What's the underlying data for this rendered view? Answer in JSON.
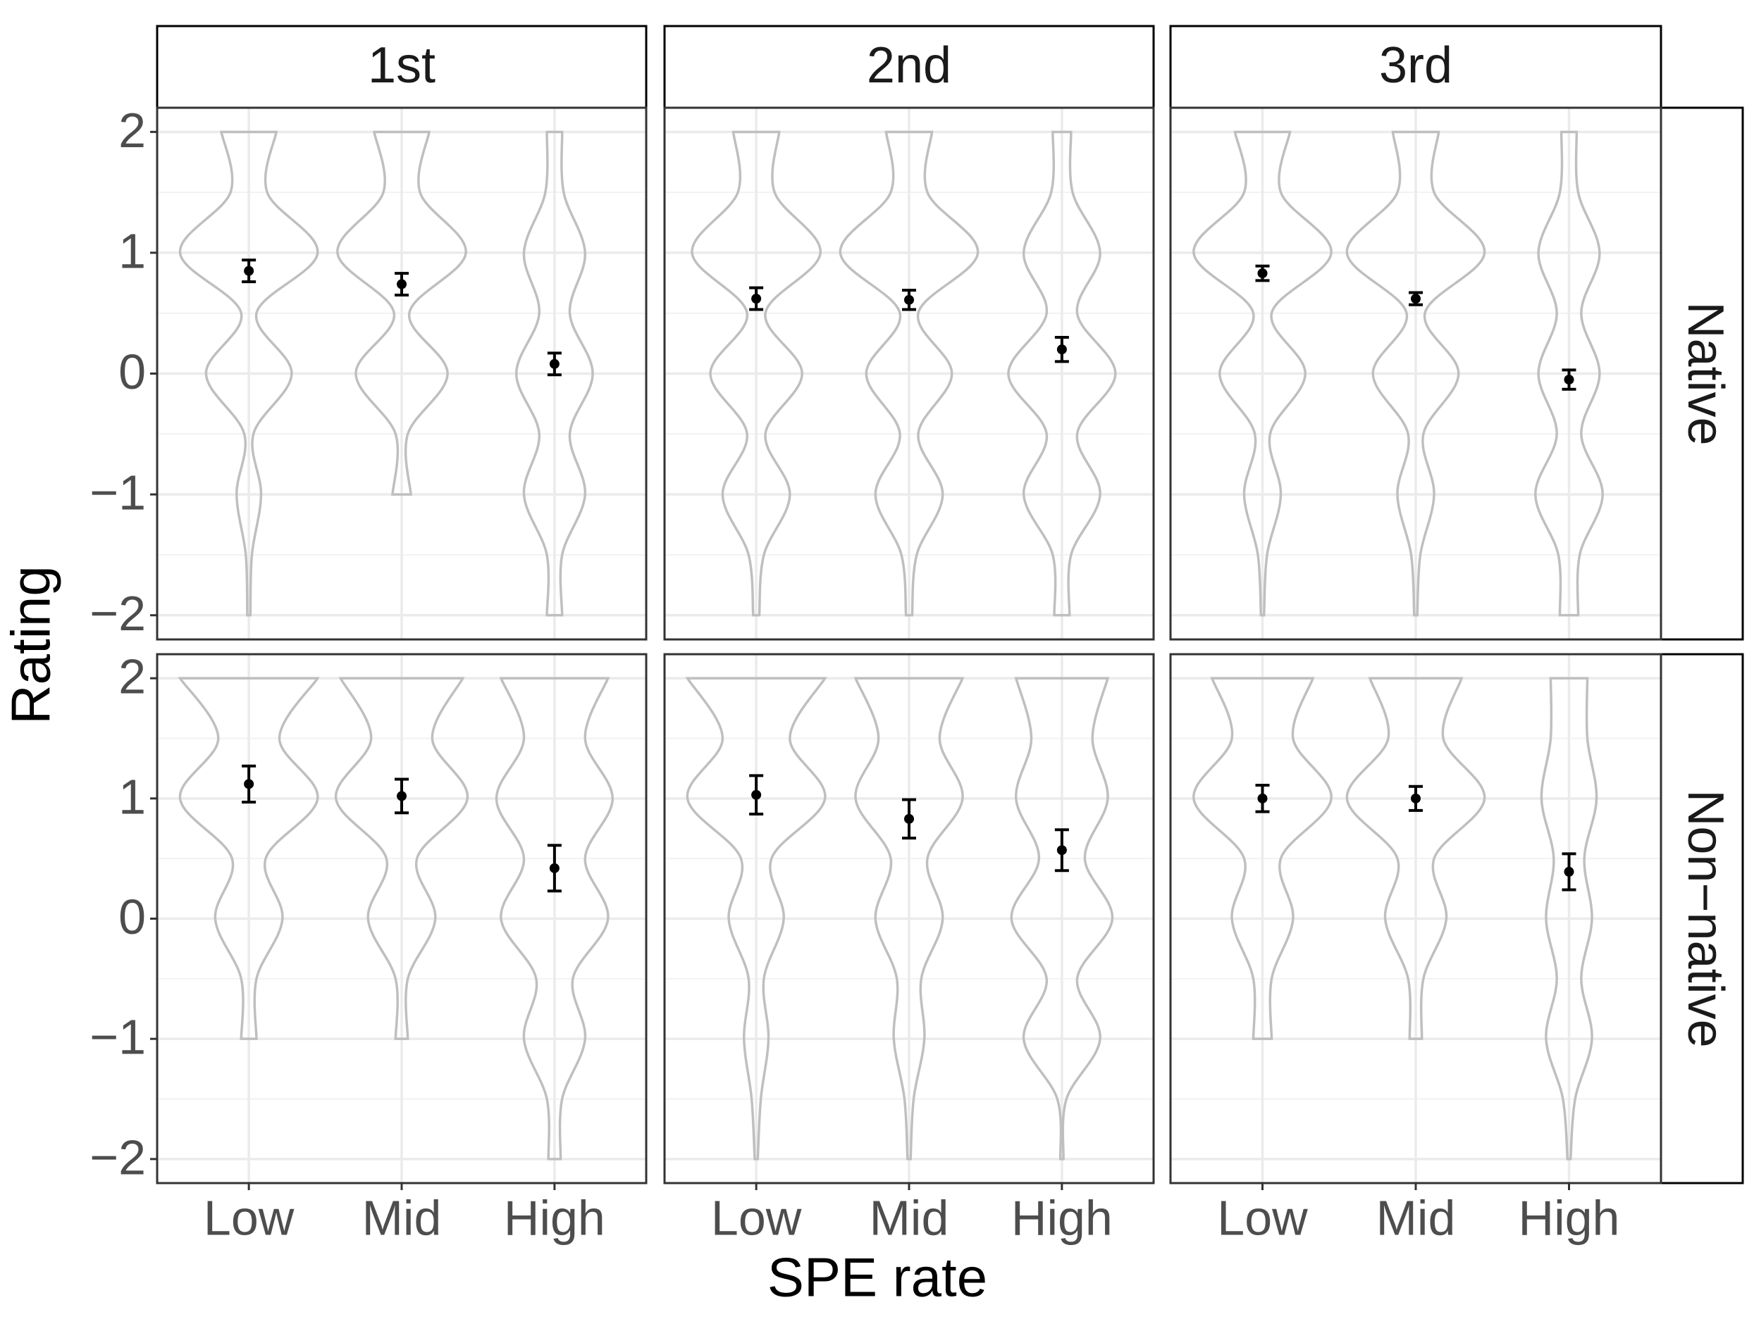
{
  "chart_data": {
    "type": "violin",
    "xlabel": "SPE rate",
    "ylabel": "Rating",
    "columns": [
      "1st",
      "2nd",
      "3rd"
    ],
    "rows": [
      "Native",
      "Non−native"
    ],
    "categories": [
      "Low",
      "Mid",
      "High"
    ],
    "ylim": [
      -2.2,
      2.2
    ],
    "yticks": [
      {
        "value": -2,
        "label": "−2"
      },
      {
        "value": -1,
        "label": "−1"
      },
      0,
      1,
      2
    ],
    "grid": true,
    "violin_color": "#bfbfbf",
    "point_color": "#000000",
    "density_levels": [
      -2,
      -1.5,
      -1,
      -0.5,
      0,
      0.5,
      1,
      1.5,
      2
    ],
    "panels": [
      [
        {
          "means": [
            0.85,
            0.74,
            0.08
          ],
          "errors": [
            0.09,
            0.09,
            0.09
          ],
          "widths": [
            [
              0.01,
              0.02,
              0.08,
              0.03,
              0.28,
              0.05,
              0.45,
              0.12,
              0.18
            ],
            [
              null,
              null,
              0.06,
              0.04,
              0.3,
              0.05,
              0.42,
              0.12,
              0.18
            ],
            [
              0.05,
              0.05,
              0.2,
              0.1,
              0.25,
              0.1,
              0.2,
              0.06,
              0.05
            ]
          ]
        },
        {
          "means": [
            0.62,
            0.61,
            0.2
          ],
          "errors": [
            0.09,
            0.08,
            0.1
          ],
          "widths": [
            [
              0.02,
              0.05,
              0.22,
              0.06,
              0.3,
              0.06,
              0.42,
              0.12,
              0.15
            ],
            [
              0.02,
              0.05,
              0.22,
              0.06,
              0.28,
              0.06,
              0.45,
              0.12,
              0.15
            ],
            [
              0.05,
              0.06,
              0.25,
              0.1,
              0.35,
              0.1,
              0.25,
              0.07,
              0.06
            ]
          ]
        },
        {
          "means": [
            0.83,
            0.62,
            -0.05
          ],
          "errors": [
            0.06,
            0.05,
            0.08
          ],
          "widths": [
            [
              0.01,
              0.03,
              0.12,
              0.05,
              0.28,
              0.06,
              0.45,
              0.12,
              0.18
            ],
            [
              0.01,
              0.03,
              0.12,
              0.05,
              0.28,
              0.06,
              0.45,
              0.12,
              0.15
            ],
            [
              0.06,
              0.07,
              0.22,
              0.08,
              0.2,
              0.08,
              0.2,
              0.06,
              0.05
            ]
          ]
        }
      ],
      [
        {
          "means": [
            1.12,
            1.02,
            0.42
          ],
          "errors": [
            0.15,
            0.14,
            0.19
          ],
          "widths": [
            [
              null,
              null,
              0.05,
              0.05,
              0.22,
              0.11,
              0.45,
              0.2,
              0.45
            ],
            [
              null,
              null,
              0.04,
              0.04,
              0.22,
              0.1,
              0.43,
              0.2,
              0.4
            ],
            [
              0.04,
              0.05,
              0.2,
              0.12,
              0.35,
              0.2,
              0.38,
              0.2,
              0.35
            ]
          ]
        },
        {
          "means": [
            1.03,
            0.83,
            0.57
          ],
          "errors": [
            0.16,
            0.16,
            0.17
          ],
          "widths": [
            [
              0.01,
              0.03,
              0.08,
              0.05,
              0.18,
              0.1,
              0.45,
              0.22,
              0.45
            ],
            [
              0.01,
              0.03,
              0.1,
              0.08,
              0.22,
              0.12,
              0.35,
              0.2,
              0.35
            ],
            [
              0.01,
              0.03,
              0.25,
              0.1,
              0.33,
              0.15,
              0.3,
              0.2,
              0.3
            ]
          ]
        },
        {
          "means": [
            1.0,
            1.0,
            0.39
          ],
          "errors": [
            0.11,
            0.1,
            0.15
          ],
          "widths": [
            [
              null,
              null,
              0.06,
              0.06,
              0.2,
              0.12,
              0.45,
              0.2,
              0.33
            ],
            [
              null,
              null,
              0.04,
              0.05,
              0.2,
              0.12,
              0.45,
              0.18,
              0.3
            ],
            [
              0.01,
              0.04,
              0.15,
              0.08,
              0.15,
              0.1,
              0.18,
              0.12,
              0.12
            ]
          ]
        }
      ]
    ]
  }
}
